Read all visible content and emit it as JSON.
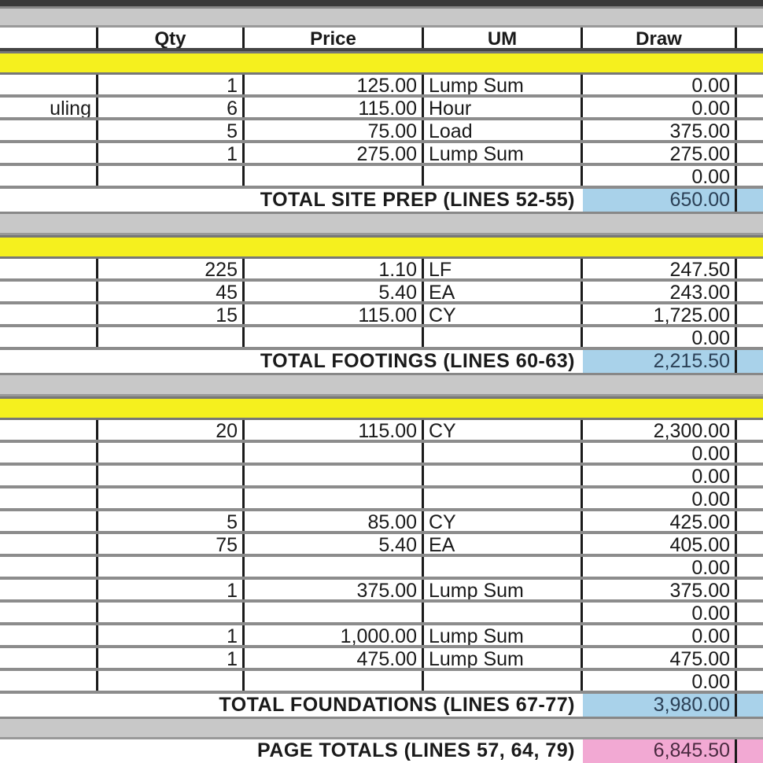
{
  "columns": {
    "qty": "Qty",
    "price": "Price",
    "um": "UM",
    "draw": "Draw"
  },
  "colors": {
    "section": "#f5f01e",
    "subtotal": "#a9d2ea",
    "page_total": "#f2a9d3",
    "separator": "#c8c8c8"
  },
  "sections": [
    {
      "items": [
        {
          "desc": "",
          "qty": "1",
          "price": "125.00",
          "um": "Lump Sum",
          "draw": "0.00"
        },
        {
          "desc": "uling",
          "qty": "6",
          "price": "115.00",
          "um": "Hour",
          "draw": "0.00"
        },
        {
          "desc": "",
          "qty": "5",
          "price": "75.00",
          "um": "Load",
          "draw": "375.00"
        },
        {
          "desc": "",
          "qty": "1",
          "price": "275.00",
          "um": "Lump Sum",
          "draw": "275.00"
        },
        {
          "desc": "",
          "qty": "",
          "price": "",
          "um": "",
          "draw": "0.00"
        }
      ],
      "total_label": "TOTAL SITE PREP (LINES 52-55)",
      "total": "650.00"
    },
    {
      "items": [
        {
          "desc": "",
          "qty": "225",
          "price": "1.10",
          "um": "LF",
          "draw": "247.50"
        },
        {
          "desc": "",
          "qty": "45",
          "price": "5.40",
          "um": "EA",
          "draw": "243.00"
        },
        {
          "desc": "",
          "qty": "15",
          "price": "115.00",
          "um": "CY",
          "draw": "1,725.00"
        },
        {
          "desc": "",
          "qty": "",
          "price": "",
          "um": "",
          "draw": "0.00"
        }
      ],
      "total_label": "TOTAL FOOTINGS (LINES 60-63)",
      "total": "2,215.50"
    },
    {
      "items": [
        {
          "desc": "",
          "qty": "20",
          "price": "115.00",
          "um": "CY",
          "draw": "2,300.00"
        },
        {
          "desc": "",
          "qty": "",
          "price": "",
          "um": "",
          "draw": "0.00"
        },
        {
          "desc": "",
          "qty": "",
          "price": "",
          "um": "",
          "draw": "0.00"
        },
        {
          "desc": "",
          "qty": "",
          "price": "",
          "um": "",
          "draw": "0.00"
        },
        {
          "desc": "",
          "qty": "5",
          "price": "85.00",
          "um": "CY",
          "draw": "425.00"
        },
        {
          "desc": "",
          "qty": "75",
          "price": "5.40",
          "um": "EA",
          "draw": "405.00"
        },
        {
          "desc": "",
          "qty": "",
          "price": "",
          "um": "",
          "draw": "0.00"
        },
        {
          "desc": "",
          "qty": "1",
          "price": "375.00",
          "um": "Lump Sum",
          "draw": "375.00"
        },
        {
          "desc": "",
          "qty": "",
          "price": "",
          "um": "",
          "draw": "0.00"
        },
        {
          "desc": "",
          "qty": "1",
          "price": "1,000.00",
          "um": "Lump Sum",
          "draw": "0.00"
        },
        {
          "desc": "",
          "qty": "1",
          "price": "475.00",
          "um": "Lump Sum",
          "draw": "475.00"
        },
        {
          "desc": "",
          "qty": "",
          "price": "",
          "um": "",
          "draw": "0.00"
        }
      ],
      "total_label": "TOTAL FOUNDATIONS (LINES 67-77)",
      "total": "3,980.00"
    }
  ],
  "page_total": {
    "label": "PAGE TOTALS (LINES 57, 64, 79)",
    "value": "6,845.50"
  }
}
